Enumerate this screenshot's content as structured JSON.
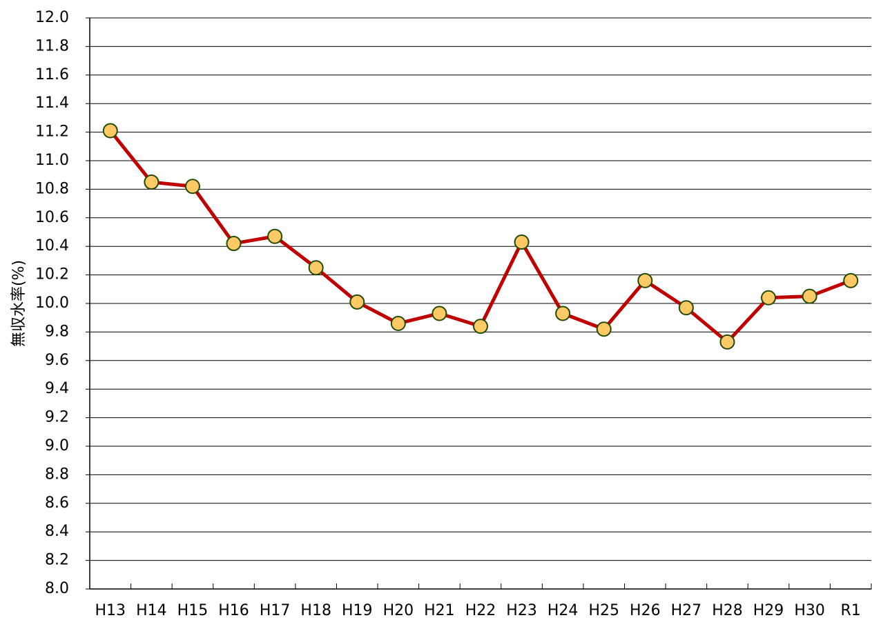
{
  "chart_data": {
    "type": "line",
    "y_label": "無収水率(%)",
    "categories": [
      "H13",
      "H14",
      "H15",
      "H16",
      "H17",
      "H18",
      "H19",
      "H20",
      "H21",
      "H22",
      "H23",
      "H24",
      "H25",
      "H26",
      "H27",
      "H28",
      "H29",
      "H30",
      "R1"
    ],
    "series": [
      {
        "color": "#c00000",
        "marker_color": "#ffc966",
        "marker_edge": "#1f4a00",
        "values": [
          11.21,
          10.85,
          10.82,
          10.42,
          10.47,
          10.25,
          10.01,
          9.86,
          9.93,
          9.84,
          10.43,
          9.93,
          9.82,
          10.16,
          9.97,
          9.73,
          10.04,
          10.05,
          10.16
        ]
      }
    ],
    "ylim": [
      8.0,
      12.0
    ],
    "yticks": [
      {
        "value": 8.0,
        "label": "8.0"
      },
      {
        "value": 8.2,
        "label": "8.2"
      },
      {
        "value": 8.4,
        "label": "8.4"
      },
      {
        "value": 8.6,
        "label": "8.6"
      },
      {
        "value": 8.8,
        "label": "8.8"
      },
      {
        "value": 9.0,
        "label": "9.0"
      },
      {
        "value": 9.2,
        "label": "9.2"
      },
      {
        "value": 9.4,
        "label": "9.4"
      },
      {
        "value": 9.6,
        "label": "9.6"
      },
      {
        "value": 9.8,
        "label": "9.8"
      },
      {
        "value": 10.0,
        "label": "10.0"
      },
      {
        "value": 10.2,
        "label": "10.2"
      },
      {
        "value": 10.4,
        "label": "10.4"
      },
      {
        "value": 10.6,
        "label": "10.6"
      },
      {
        "value": 10.8,
        "label": "10.8"
      },
      {
        "value": 11.0,
        "label": "11.0"
      },
      {
        "value": 11.2,
        "label": "11.2"
      },
      {
        "value": 11.4,
        "label": "11.4"
      },
      {
        "value": 11.6,
        "label": "11.6"
      },
      {
        "value": 11.8,
        "label": "11.8"
      },
      {
        "value": 12.0,
        "label": "12.0"
      }
    ],
    "grid": true
  }
}
